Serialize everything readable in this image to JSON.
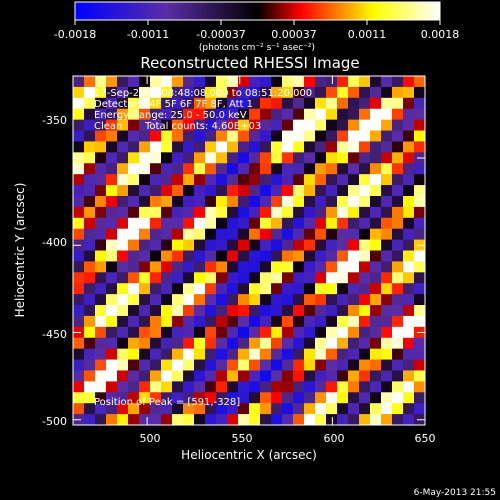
{
  "chart_data": {
    "type": "heatmap",
    "title": "Reconstructed RHESSI Image",
    "xlabel": "Heliocentric X (arcsec)",
    "ylabel": "Heliocentric Y (arcsec)",
    "xlim": [
      460,
      650
    ],
    "ylim": [
      -503,
      -303
    ],
    "x_ticks": [
      500,
      550,
      600,
      650
    ],
    "y_ticks": [
      -350,
      -400,
      -450,
      -500
    ],
    "colorbar": {
      "range": [
        -0.0018,
        0.0018
      ],
      "ticks": [
        "-0.0018",
        "-0.0011",
        "-0.00037",
        "0.00037",
        "0.0011",
        "0.0018"
      ],
      "units_label": "(photons cm⁻² s⁻¹ asec⁻²)",
      "colormap": [
        "#0000ff",
        "#5a2da6",
        "#000000",
        "#ff0000",
        "#ffff00",
        "#ffffff"
      ]
    },
    "annotations": {
      "time": "17-Sep-2002 08:48:08.000 to 08:51:20.000",
      "detectors": "Detectors: 4F 5F 6F 7F 8F, Att 1",
      "energy": "Energy Range: 25.0 - 50.0 keV",
      "method": "Clean",
      "counts": "Total counts: 4.60E+03",
      "peak": "Position of Peak = [591,-328]"
    },
    "peak_position": [
      591,
      -328
    ],
    "footer_date": "6-May-2013 21:55",
    "grid": false
  }
}
